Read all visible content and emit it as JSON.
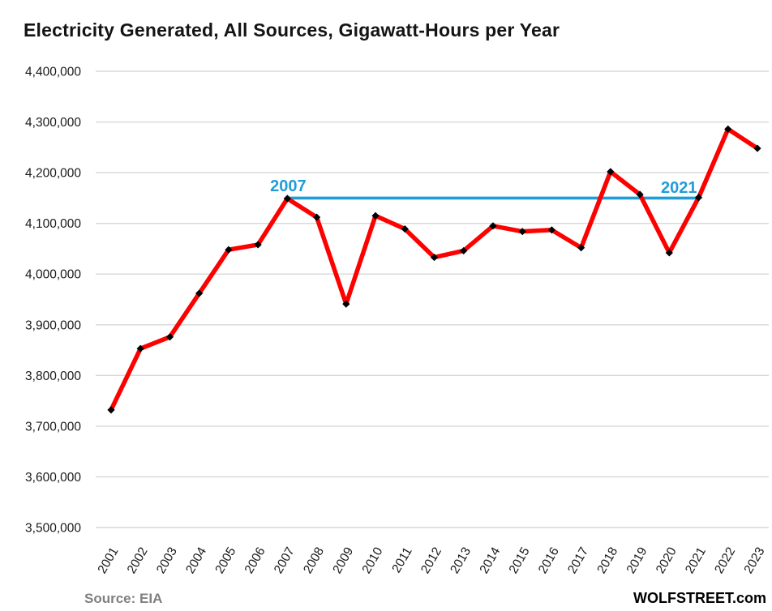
{
  "title": "Electricity Generated, All Sources, Gigawatt-Hours per Year",
  "footer": {
    "source": "Source: EIA",
    "brand": "WOLFSTREET.com"
  },
  "colors": {
    "line": "#FE0000",
    "marker": "#000000",
    "annotation_blue": "#1F9DD9",
    "gridline": "#D7D7D7",
    "axis_text": "#1A1A1A",
    "source_gray": "#808080"
  },
  "chart_data": {
    "type": "line",
    "title": "Electricity Generated, All Sources, Gigawatt-Hours per Year",
    "categories": [
      "2001",
      "2002",
      "2003",
      "2004",
      "2005",
      "2006",
      "2007",
      "2008",
      "2009",
      "2010",
      "2011",
      "2012",
      "2013",
      "2014",
      "2015",
      "2016",
      "2017",
      "2018",
      "2019",
      "2020",
      "2021",
      "2022",
      "2023"
    ],
    "series": [
      {
        "name": "Electricity generated, all sources (gigawatt-hours per year)",
        "values": [
          3732000,
          3853000,
          3876000,
          3962000,
          4048000,
          4058000,
          4149000,
          4112000,
          3941000,
          4115000,
          4089000,
          4033000,
          4046000,
          4095000,
          4084000,
          4087000,
          4052000,
          4202000,
          4157000,
          4042000,
          4151000,
          4286000,
          4248000
        ]
      }
    ],
    "ylim": [
      3500000,
      4400000
    ],
    "ytick_step": 100000,
    "ytick_labels": [
      "4,400,000",
      "4,300,000",
      "4,200,000",
      "4,100,000",
      "4,000,000",
      "3,900,000",
      "3,800,000",
      "3,700,000",
      "3,600,000",
      "3,500,000"
    ],
    "xlabel": "",
    "ylabel": "",
    "grid": true,
    "legend_position": "none",
    "annotation": {
      "type": "horizontal-comparison-line",
      "value": 4150000,
      "from_category": "2007",
      "to_category": "2021",
      "label_left": "2007",
      "label_right": "2021"
    }
  }
}
